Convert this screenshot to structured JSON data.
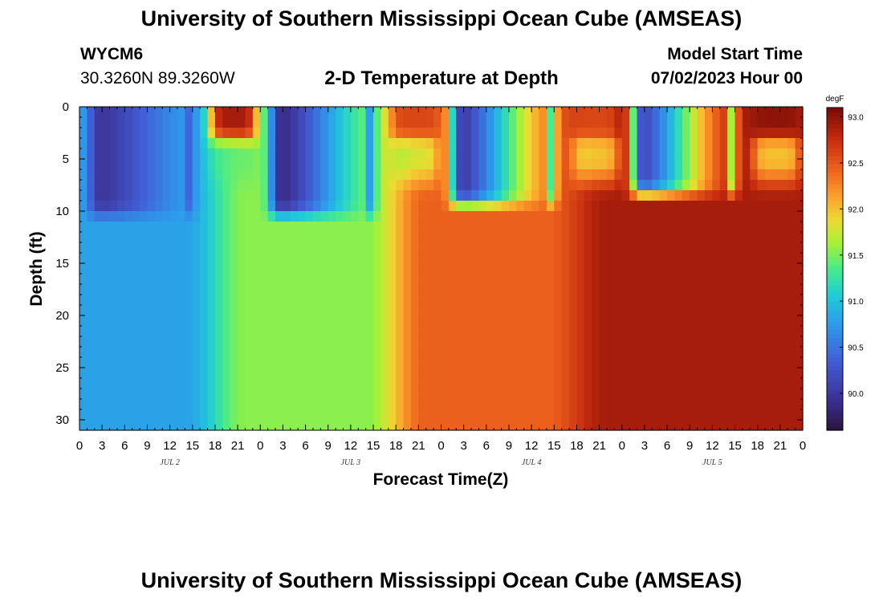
{
  "header": {
    "title": "University of Southern Mississippi Ocean Cube (AMSEAS)",
    "station_id": "WYCM6",
    "coords": "30.3260N  89.3260W",
    "subtitle": "2-D Temperature at Depth",
    "model_start_label": "Model Start Time",
    "model_start_value": "07/02/2023 Hour 00"
  },
  "footer": {
    "title": "University of Southern Mississippi Ocean Cube (AMSEAS)"
  },
  "chart_data": {
    "type": "heatmap",
    "title": "2-D Temperature at Depth",
    "xlabel": "Forecast Time(Z)",
    "ylabel": "Depth (ft)",
    "x_tick_labels": [
      "0",
      "3",
      "6",
      "9",
      "12",
      "15",
      "18",
      "21",
      "0",
      "3",
      "6",
      "9",
      "12",
      "15",
      "18",
      "21",
      "0",
      "3",
      "6",
      "9",
      "12",
      "15",
      "18",
      "21",
      "0",
      "3",
      "6",
      "9",
      "12",
      "15",
      "18",
      "21",
      "0"
    ],
    "day_labels": [
      {
        "hour": 12,
        "label": "JUL 2"
      },
      {
        "hour": 36,
        "label": "JUL 3"
      },
      {
        "hour": 60,
        "label": "JUL 4"
      },
      {
        "hour": 84,
        "label": "JUL 5"
      }
    ],
    "xlim_hours": [
      0,
      96
    ],
    "ylim_ft": [
      0,
      31
    ],
    "y_ticks": [
      0,
      5,
      10,
      15,
      20,
      25,
      30
    ],
    "y_invert": true,
    "colorbar": {
      "unit": "degF",
      "range": [
        89.6,
        93.1
      ],
      "ticks": [
        "90.0",
        "90.5",
        "91.0",
        "91.5",
        "92.0",
        "92.5",
        "93.0"
      ]
    },
    "time_step_hours": 1,
    "depth_step_ft": 1,
    "day_profiles": [
      {
        "day": "JUL 2",
        "deep_temp": 90.8,
        "surface_cold": 89.9,
        "thermocline_ft": 10,
        "warm_cap": 92.9
      },
      {
        "day": "JUL 3",
        "deep_temp": 91.55,
        "surface_cold": 89.7,
        "thermocline_ft": 10,
        "warm_cap": 92.6
      },
      {
        "day": "JUL 4",
        "deep_temp": 92.45,
        "surface_cold": 89.8,
        "thermocline_ft": 9,
        "warm_cap": 92.6
      },
      {
        "day": "JUL 5",
        "deep_temp": 92.9,
        "surface_cold": 89.9,
        "thermocline_ft": 8,
        "warm_cap": 93.0
      }
    ]
  }
}
